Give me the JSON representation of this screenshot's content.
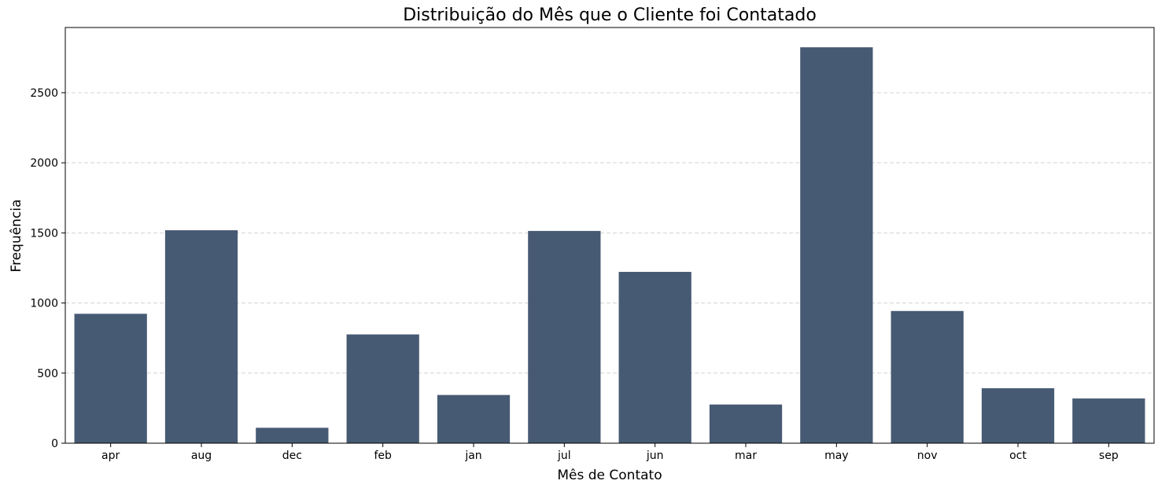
{
  "chart_data": {
    "type": "bar",
    "title": "Distribuição do Mês que o Cliente foi Contatado",
    "xlabel": "Mês de Contato",
    "ylabel": "Frequência",
    "categories": [
      "apr",
      "aug",
      "dec",
      "feb",
      "jan",
      "jul",
      "jun",
      "mar",
      "may",
      "nov",
      "oct",
      "sep"
    ],
    "values": [
      923,
      1519,
      110,
      776,
      344,
      1514,
      1222,
      276,
      2824,
      943,
      392,
      319
    ],
    "ylim": [
      0,
      2965
    ],
    "yticks": [
      0,
      500,
      1000,
      1500,
      2000,
      2500
    ],
    "grid": {
      "axis": "y",
      "style": "dashed"
    },
    "bar_color": "#475a73",
    "grid_color": "#d3d3d3"
  }
}
